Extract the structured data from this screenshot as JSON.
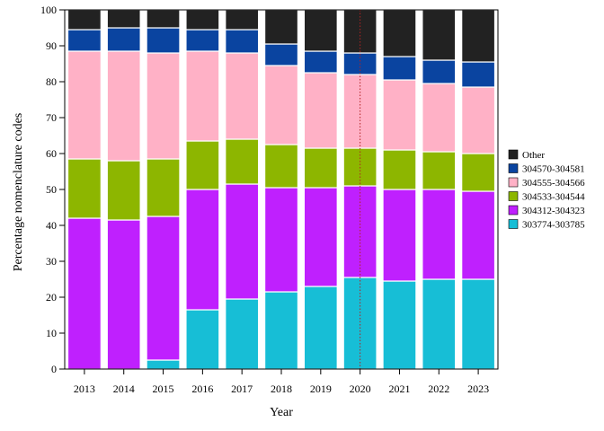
{
  "chart_data": {
    "type": "bar",
    "stacked": true,
    "title": "",
    "xlabel": "Year",
    "ylabel": "Percentage nomenclature codes",
    "categories": [
      "2013",
      "2014",
      "2015",
      "2016",
      "2017",
      "2018",
      "2019",
      "2020",
      "2021",
      "2022",
      "2023"
    ],
    "ylim": [
      0,
      100
    ],
    "yticks": [
      0,
      10,
      20,
      30,
      40,
      50,
      60,
      70,
      80,
      90,
      100
    ],
    "grid": false,
    "legend_position": "right",
    "annotation": "vertical dotted red line at 2020",
    "annotation_color": "#b22222",
    "series": [
      {
        "name": "303774-303785",
        "color": "#17bed6",
        "values": [
          0,
          0,
          2.5,
          16.5,
          19.5,
          21.5,
          23,
          25.5,
          24.5,
          25,
          25
        ]
      },
      {
        "name": "304312-304323",
        "color": "#bf20fe",
        "values": [
          42,
          41.5,
          40,
          33.5,
          32,
          29,
          27.5,
          25.5,
          25.5,
          25,
          24.5
        ]
      },
      {
        "name": "304533-304544",
        "color": "#8db600",
        "values": [
          16.5,
          16.5,
          16,
          13.5,
          12.5,
          12,
          11,
          10.5,
          11,
          10.5,
          10.5
        ]
      },
      {
        "name": "304555-304566",
        "color": "#ffb1c6",
        "values": [
          30,
          30.5,
          29.5,
          25,
          24,
          22,
          21,
          20.5,
          19.5,
          19,
          18.5
        ]
      },
      {
        "name": "304570-304581",
        "color": "#0a44a0",
        "values": [
          6,
          6.5,
          7,
          6,
          6.5,
          6,
          6,
          6,
          6.5,
          6.5,
          7
        ]
      },
      {
        "name": "Other",
        "color": "#222222",
        "values": [
          5.5,
          5,
          5,
          5.5,
          5.5,
          9.5,
          11.5,
          12,
          13,
          14,
          14.5
        ]
      }
    ]
  }
}
